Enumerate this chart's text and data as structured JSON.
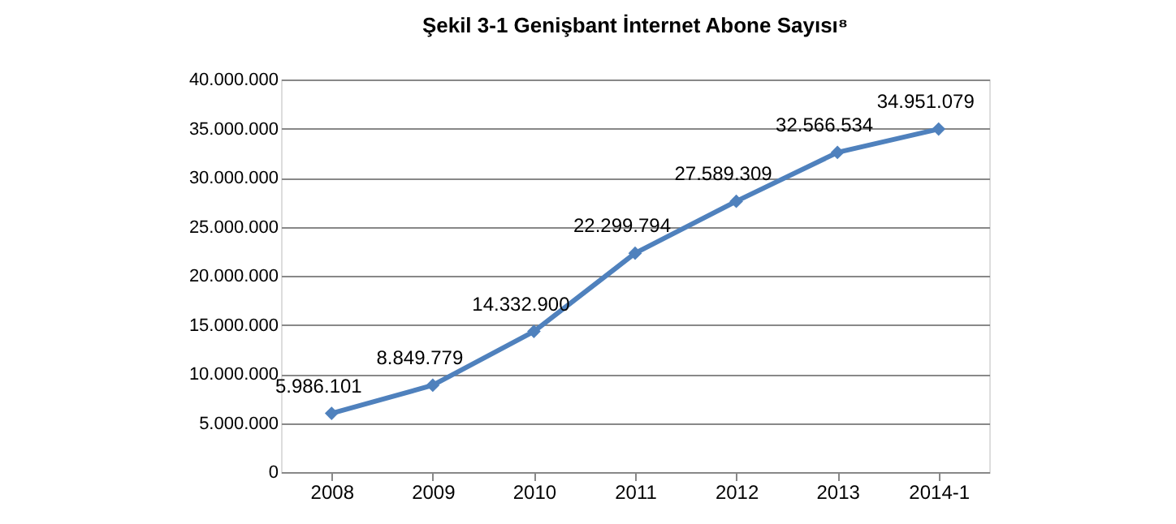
{
  "chart_data": {
    "type": "line",
    "title": "Şekil 3-1 Genişbant İnternet Abone Sayısı⁸",
    "categories": [
      "2008",
      "2009",
      "2010",
      "2011",
      "2012",
      "2013",
      "2014-1"
    ],
    "series": [
      {
        "color": "#4f81bd",
        "values": [
          5986101,
          8849779,
          14332900,
          22299794,
          27589309,
          32566534,
          34951079
        ],
        "value_labels": [
          "5.986.101",
          "8.849.779",
          "14.332.900",
          "22.299.794",
          "27.589.309",
          "32.566.534",
          "34.951.079"
        ]
      }
    ],
    "ylim": [
      0,
      40000000
    ],
    "yticks": [
      {
        "value": 0,
        "label": "0"
      },
      {
        "value": 5000000,
        "label": "5.000.000"
      },
      {
        "value": 10000000,
        "label": "10.000.000"
      },
      {
        "value": 15000000,
        "label": "15.000.000"
      },
      {
        "value": 20000000,
        "label": "20.000.000"
      },
      {
        "value": 25000000,
        "label": "25.000.000"
      },
      {
        "value": 30000000,
        "label": "30.000.000"
      },
      {
        "value": 35000000,
        "label": "35.000.000"
      },
      {
        "value": 40000000,
        "label": "40.000.000"
      }
    ],
    "grid": "y",
    "marker": "diamond",
    "line_style": "solid"
  }
}
